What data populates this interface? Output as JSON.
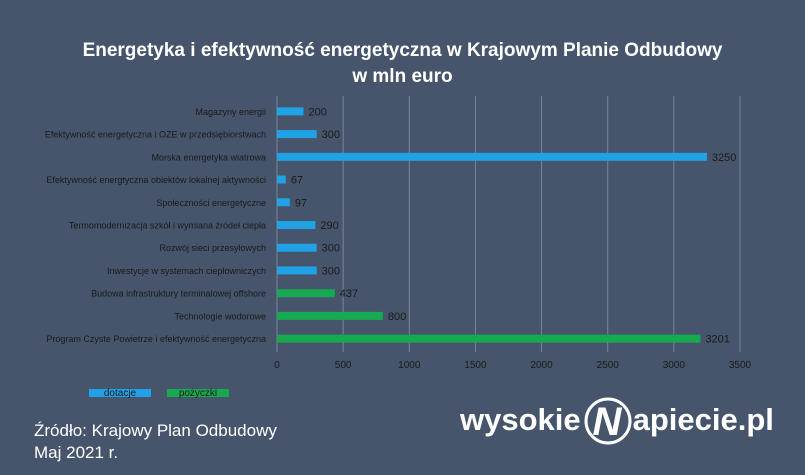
{
  "title_line1": "Energetyka i efektywność energetyczna w Krajowym Planie Odbudowy",
  "title_line2": "w mln euro",
  "source_line1": "Źródło: Krajowy Plan Odbudowy",
  "source_line2": "Maj 2021 r.",
  "logo_left": "wysokie",
  "logo_right": "apiecie.pl",
  "logo_letter": "N",
  "colors": {
    "background": "#46556b",
    "dotacje": "#1fa3e6",
    "pozyczki": "#16a94f",
    "grid": "#7a8595",
    "text_dark": "#1a1a1a",
    "text_light": "#ffffff"
  },
  "chart_data": {
    "type": "bar",
    "orientation": "horizontal",
    "title": "Energetyka i efektywność energetyczna w Krajowym Planie Odbudowy",
    "subtitle": "w mln euro",
    "categories": [
      "Magazyny energii",
      "Efektywność energetyczna i OZE w przedsiębiorstwach",
      "Morska energetyka wiatrowa",
      "Efektywność energtyczna obiektów lokalnej aktywności",
      "Społeczności energetyczne",
      "Termomodernizacja szkół i wymiana źródeł ciepła",
      "Rozwój sieci przesyłowych",
      "Inwestycje w systemach ciepłowniczych",
      "Budowa infrastruktury terminalowej offshore",
      "Technologie wodorowe",
      "Program Czyste Powietrze i efektywność energetyczna"
    ],
    "values": [
      200,
      300,
      3250,
      67,
      97,
      290,
      300,
      300,
      437,
      800,
      3201
    ],
    "value_labels": [
      "200",
      "300",
      "3250",
      "67",
      "97",
      "290",
      "300",
      "300",
      "437",
      "800",
      "3201"
    ],
    "groups": [
      "dotacje",
      "dotacje",
      "dotacje",
      "dotacje",
      "dotacje",
      "dotacje",
      "dotacje",
      "dotacje",
      "pożyczki",
      "pożyczki",
      "pożyczki"
    ],
    "legend": [
      {
        "name": "dotacje",
        "color": "#1fa3e6"
      },
      {
        "name": "pożyczki",
        "color": "#16a94f"
      }
    ],
    "xlim": [
      0,
      3500
    ],
    "xticks": [
      "0",
      "500",
      "1000",
      "1500",
      "2000",
      "2500",
      "3000",
      "3500"
    ],
    "grid": "vertical",
    "legend_placement": "bottom-left"
  }
}
